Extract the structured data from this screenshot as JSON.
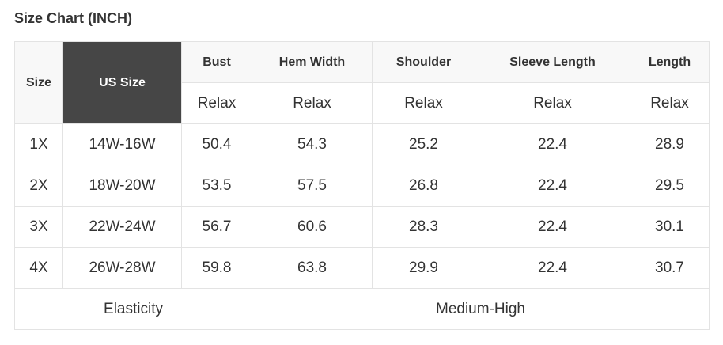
{
  "title": "Size Chart (INCH)",
  "headers": [
    "Size",
    "US Size",
    "Bust",
    "Hem Width",
    "Shoulder",
    "Sleeve Length",
    "Length"
  ],
  "fit": [
    "Relax",
    "Relax",
    "Relax",
    "Relax",
    "Relax"
  ],
  "rows": [
    [
      "1X",
      "14W-16W",
      "50.4",
      "54.3",
      "25.2",
      "22.4",
      "28.9"
    ],
    [
      "2X",
      "18W-20W",
      "53.5",
      "57.5",
      "26.8",
      "22.4",
      "29.5"
    ],
    [
      "3X",
      "22W-24W",
      "56.7",
      "60.6",
      "28.3",
      "22.4",
      "30.1"
    ],
    [
      "4X",
      "26W-28W",
      "59.8",
      "63.8",
      "29.9",
      "22.4",
      "30.7"
    ]
  ],
  "footer": {
    "label": "Elasticity",
    "value": "Medium-High"
  },
  "colors": {
    "header_bg": "#f8f8f8",
    "highlight_bg": "#464646",
    "border": "#e3e3e3"
  }
}
